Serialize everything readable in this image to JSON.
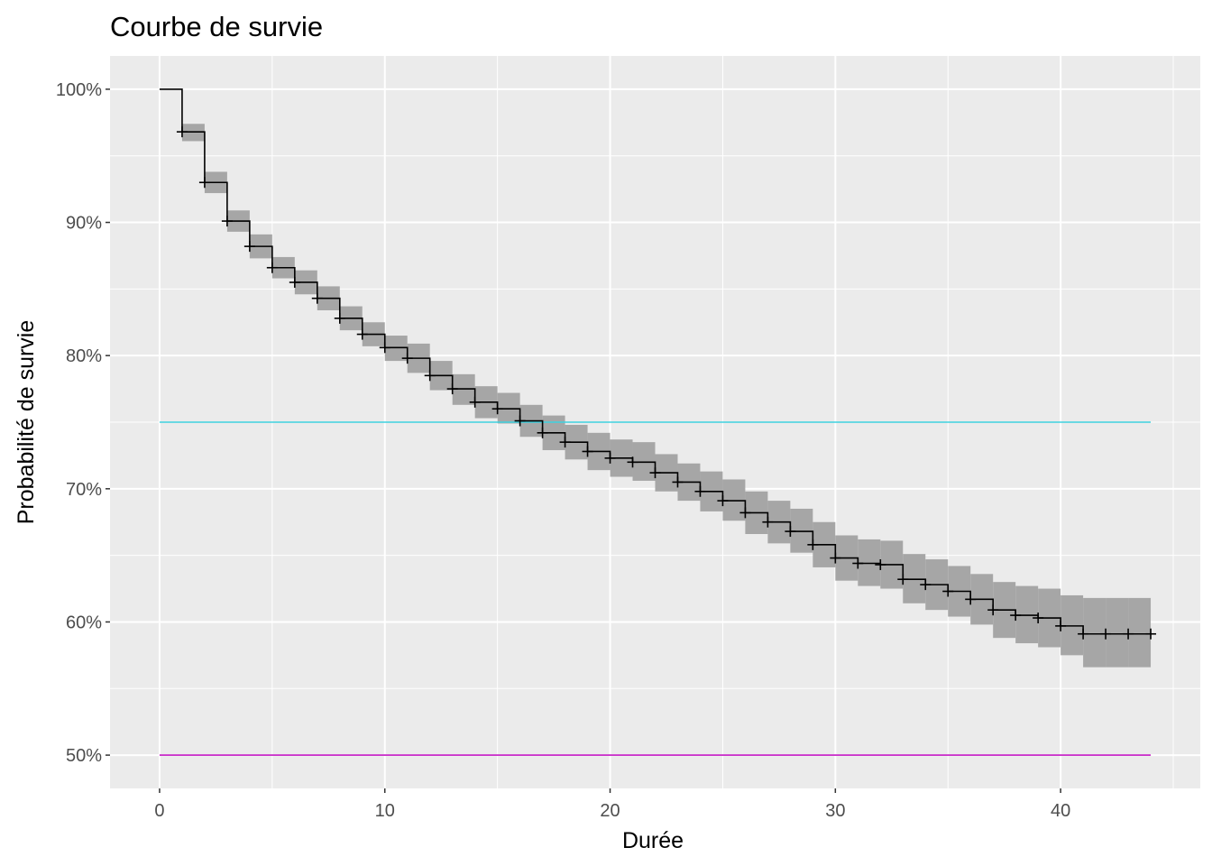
{
  "chart_data": {
    "type": "line",
    "title": "Courbe de survie",
    "xlabel": "Durée",
    "ylabel": "Probabilité de survie",
    "xlim": [
      -2.2,
      46.2
    ],
    "ylim": [
      47.5,
      102.5
    ],
    "x_ticks": [
      0,
      10,
      20,
      30,
      40
    ],
    "x_tick_labels": [
      "0",
      "10",
      "20",
      "30",
      "40"
    ],
    "y_ticks": [
      50,
      60,
      70,
      80,
      90,
      100
    ],
    "y_tick_labels": [
      "50%",
      "60%",
      "70%",
      "80%",
      "90%",
      "100%"
    ],
    "grid": true,
    "background": "#ebebeb",
    "series": [
      {
        "kind": "survival-step",
        "color": "#000000",
        "band_color": "#a6a6a6",
        "x": [
          0,
          1,
          2,
          3,
          4,
          5,
          6,
          7,
          8,
          9,
          10,
          11,
          12,
          13,
          14,
          15,
          16,
          17,
          18,
          19,
          20,
          21,
          22,
          23,
          24,
          25,
          26,
          27,
          28,
          29,
          30,
          31,
          32,
          33,
          34,
          35,
          36,
          37,
          38,
          39,
          40,
          41,
          42,
          43,
          44
        ],
        "survival": [
          100,
          96.8,
          93.0,
          90.1,
          88.2,
          86.6,
          85.5,
          84.3,
          82.8,
          81.6,
          80.6,
          79.8,
          78.5,
          77.5,
          76.5,
          76.0,
          75.1,
          74.2,
          73.5,
          72.8,
          72.3,
          72.0,
          71.2,
          70.5,
          69.8,
          69.1,
          68.2,
          67.5,
          66.8,
          65.8,
          64.8,
          64.4,
          64.3,
          63.2,
          62.8,
          62.3,
          61.7,
          60.9,
          60.5,
          60.3,
          59.7,
          59.1,
          59.1,
          59.1,
          59.1
        ],
        "lower": [
          100,
          96.1,
          92.2,
          89.3,
          87.3,
          85.8,
          84.6,
          83.4,
          81.9,
          80.7,
          79.6,
          78.7,
          77.4,
          76.3,
          75.3,
          74.9,
          73.9,
          72.9,
          72.2,
          71.4,
          70.9,
          70.6,
          69.8,
          69.1,
          68.3,
          67.6,
          66.6,
          65.9,
          65.2,
          64.1,
          63.1,
          62.7,
          62.5,
          61.4,
          60.9,
          60.4,
          59.8,
          58.8,
          58.4,
          58.1,
          57.5,
          56.6,
          56.6,
          56.6,
          56.6
        ],
        "upper": [
          100,
          97.4,
          93.8,
          90.9,
          89.1,
          87.4,
          86.4,
          85.2,
          83.7,
          82.5,
          81.5,
          80.9,
          79.6,
          78.6,
          77.7,
          77.2,
          76.3,
          75.5,
          74.8,
          74.2,
          73.7,
          73.5,
          72.6,
          71.9,
          71.3,
          70.7,
          69.8,
          69.1,
          68.5,
          67.5,
          66.5,
          66.2,
          66.1,
          65.1,
          64.7,
          64.2,
          63.6,
          63.0,
          62.7,
          62.5,
          62.0,
          61.8,
          61.8,
          61.8,
          61.8
        ],
        "censor_x": [
          1,
          2,
          3,
          4,
          5,
          6,
          7,
          8,
          9,
          10,
          11,
          12,
          13,
          14,
          15,
          16,
          17,
          18,
          19,
          20,
          21,
          22,
          23,
          24,
          25,
          26,
          27,
          28,
          29,
          30,
          31,
          32,
          33,
          34,
          35,
          36,
          37,
          38,
          39,
          40,
          41,
          42,
          43,
          44
        ]
      }
    ],
    "reference_lines": [
      {
        "y": 75,
        "color": "#3fd2e0"
      },
      {
        "y": 50,
        "color": "#c217c2"
      }
    ]
  }
}
